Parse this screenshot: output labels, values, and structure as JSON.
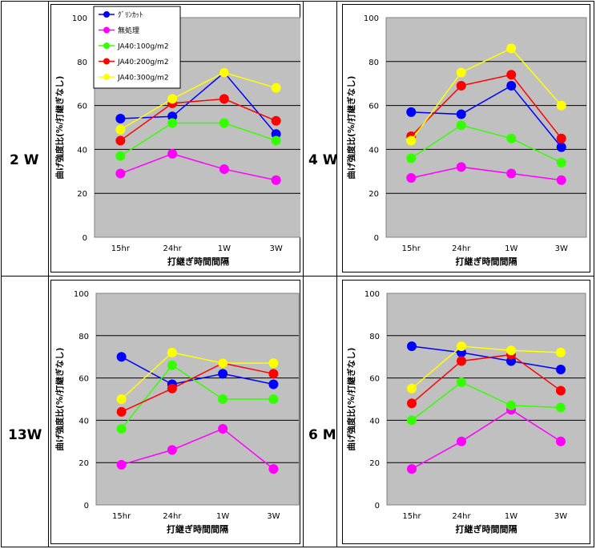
{
  "row_labels": [
    "2 W",
    "4 W",
    "13W",
    "6 M"
  ],
  "colors": {
    "series": [
      "#0000ff",
      "#ff00ff",
      "#33ff00",
      "#ff0000",
      "#ffff00"
    ],
    "plot_bg": "#c0c0c0"
  },
  "chart_data": [
    {
      "type": "line",
      "title": "",
      "categories": [
        "15hr",
        "24hr",
        "1W",
        "3W"
      ],
      "xlabel": "打継ぎ時間間隔",
      "ylabel": "曲げ強度比(%/打継ぎなし)",
      "ylim": [
        0,
        100
      ],
      "yticks": [
        "0",
        "20",
        "40",
        "60",
        "80",
        "100"
      ],
      "grid": true,
      "legend_position": "top-left",
      "series": [
        {
          "name": "ｸﾞﾘﾝｶｯﾄ",
          "values": [
            54,
            55,
            75,
            47
          ]
        },
        {
          "name": "無処理",
          "values": [
            29,
            38,
            31,
            26
          ]
        },
        {
          "name": "JA40:100g/m2",
          "values": [
            37,
            52,
            52,
            44
          ]
        },
        {
          "name": "JA40:200g/m2",
          "values": [
            44,
            61,
            63,
            53
          ]
        },
        {
          "name": "JA40:300g/m2",
          "values": [
            49,
            63,
            75,
            68
          ]
        }
      ]
    },
    {
      "type": "line",
      "title": "",
      "categories": [
        "15hr",
        "24hr",
        "1W",
        "3W"
      ],
      "xlabel": "打継ぎ時間間隔",
      "ylabel": "曲げ強度比(%/打継ぎなし)",
      "ylim": [
        0,
        100
      ],
      "yticks": [
        "0",
        "20",
        "40",
        "60",
        "80",
        "100"
      ],
      "grid": true,
      "series": [
        {
          "values": [
            57,
            56,
            69,
            41
          ]
        },
        {
          "values": [
            27,
            32,
            29,
            26
          ]
        },
        {
          "values": [
            36,
            51,
            45,
            34
          ]
        },
        {
          "values": [
            46,
            69,
            74,
            45
          ]
        },
        {
          "values": [
            44,
            75,
            86,
            60
          ]
        }
      ]
    },
    {
      "type": "line",
      "title": "",
      "categories": [
        "15hr",
        "24hr",
        "1W",
        "3W"
      ],
      "xlabel": "打継ぎ時間間隔",
      "ylabel": "曲げ強度比(%/打継ぎなし)",
      "ylim": [
        0,
        100
      ],
      "yticks": [
        "0",
        "20",
        "40",
        "60",
        "80",
        "100"
      ],
      "grid": true,
      "series": [
        {
          "values": [
            70,
            57,
            62,
            57
          ]
        },
        {
          "values": [
            19,
            26,
            36,
            17
          ]
        },
        {
          "values": [
            36,
            66,
            50,
            50
          ]
        },
        {
          "values": [
            44,
            55,
            67,
            62
          ]
        },
        {
          "values": [
            50,
            72,
            67,
            67
          ]
        }
      ]
    },
    {
      "type": "line",
      "title": "",
      "categories": [
        "15hr",
        "24hr",
        "1W",
        "3W"
      ],
      "xlabel": "打継ぎ時間間隔",
      "ylabel": "曲げ強度比(%/打継ぎなし)",
      "ylim": [
        0,
        100
      ],
      "yticks": [
        "0",
        "20",
        "40",
        "60",
        "80",
        "100"
      ],
      "grid": true,
      "series": [
        {
          "values": [
            75,
            72,
            68,
            64
          ]
        },
        {
          "values": [
            17,
            30,
            45,
            30
          ]
        },
        {
          "values": [
            40,
            58,
            47,
            46
          ]
        },
        {
          "values": [
            48,
            68,
            71,
            54
          ]
        },
        {
          "values": [
            55,
            75,
            73,
            72
          ]
        }
      ]
    }
  ]
}
